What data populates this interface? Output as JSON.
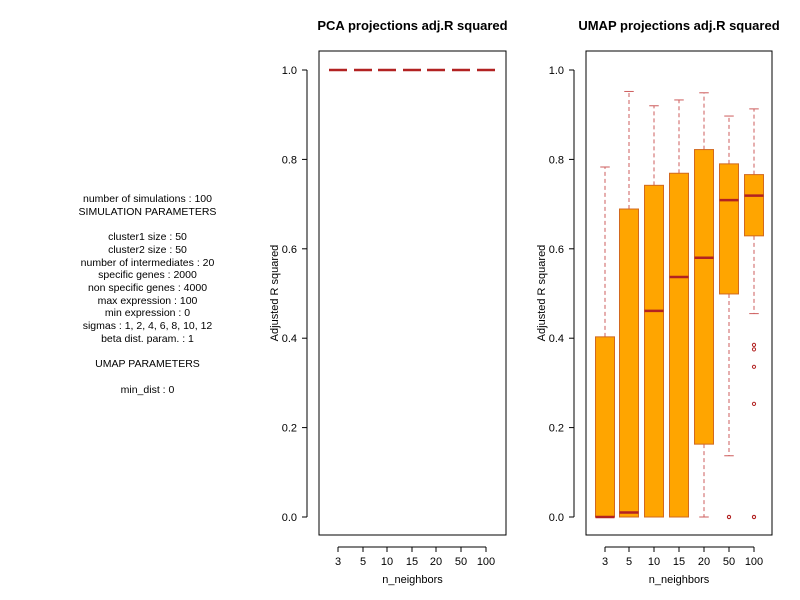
{
  "params": {
    "lines": [
      "number of simulations : 100",
      "SIMULATION PARAMETERS",
      "",
      "cluster1 size : 50",
      "cluster2 size : 50",
      "number of intermediates : 20",
      "specific genes : 2000",
      "non specific genes : 4000",
      "max expression : 100",
      "min expression : 0",
      "sigmas : 1, 2, 4, 6, 8, 10, 12",
      "beta dist. param. : 1",
      "",
      "UMAP PARAMETERS",
      "",
      "min_dist : 0"
    ]
  },
  "colors": {
    "box_fill": "#FFA500",
    "box_border": "#D2691E",
    "median": "#B22222",
    "whisker": "#CD5C5C",
    "outlier": "#B22222"
  },
  "chart_data": [
    {
      "type": "boxplot",
      "title": "PCA projections adj.R squared",
      "xlabel": "n_neighbors",
      "ylabel": "Adjusted R squared",
      "ylim": [
        0.0,
        1.0
      ],
      "yticks": [
        "0.0",
        "0.2",
        "0.4",
        "0.6",
        "0.8",
        "1.0"
      ],
      "categories": [
        "3",
        "5",
        "10",
        "15",
        "20",
        "50",
        "100"
      ],
      "boxes": [
        {
          "min": 1.0,
          "q1": 1.0,
          "median": 1.0,
          "q3": 1.0,
          "max": 1.0,
          "outliers": []
        },
        {
          "min": 1.0,
          "q1": 1.0,
          "median": 1.0,
          "q3": 1.0,
          "max": 1.0,
          "outliers": []
        },
        {
          "min": 1.0,
          "q1": 1.0,
          "median": 1.0,
          "q3": 1.0,
          "max": 1.0,
          "outliers": []
        },
        {
          "min": 1.0,
          "q1": 1.0,
          "median": 1.0,
          "q3": 1.0,
          "max": 1.0,
          "outliers": []
        },
        {
          "min": 1.0,
          "q1": 1.0,
          "median": 1.0,
          "q3": 1.0,
          "max": 1.0,
          "outliers": []
        },
        {
          "min": 1.0,
          "q1": 1.0,
          "median": 1.0,
          "q3": 1.0,
          "max": 1.0,
          "outliers": []
        },
        {
          "min": 1.0,
          "q1": 1.0,
          "median": 1.0,
          "q3": 1.0,
          "max": 1.0,
          "outliers": []
        }
      ]
    },
    {
      "type": "boxplot",
      "title": "UMAP projections adj.R squared",
      "xlabel": "n_neighbors",
      "ylabel": "Adjusted R squared",
      "ylim": [
        0.0,
        1.0
      ],
      "yticks": [
        "0.0",
        "0.2",
        "0.4",
        "0.6",
        "0.8",
        "1.0"
      ],
      "categories": [
        "3",
        "5",
        "10",
        "15",
        "20",
        "50",
        "100"
      ],
      "boxes": [
        {
          "min": 0.0,
          "q1": 0.0,
          "median": 0.0,
          "q3": 0.403,
          "max": 0.783,
          "outliers": []
        },
        {
          "min": 0.0,
          "q1": 0.0,
          "median": 0.01,
          "q3": 0.689,
          "max": 0.952,
          "outliers": []
        },
        {
          "min": 0.0,
          "q1": 0.0,
          "median": 0.461,
          "q3": 0.742,
          "max": 0.92,
          "outliers": []
        },
        {
          "min": 0.0,
          "q1": 0.0,
          "median": 0.537,
          "q3": 0.769,
          "max": 0.933,
          "outliers": []
        },
        {
          "min": 0.0,
          "q1": 0.163,
          "median": 0.58,
          "q3": 0.822,
          "max": 0.949,
          "outliers": []
        },
        {
          "min": 0.137,
          "q1": 0.499,
          "median": 0.709,
          "q3": 0.79,
          "max": 0.897,
          "outliers": [
            0.0,
            0.0
          ]
        },
        {
          "min": 0.455,
          "q1": 0.629,
          "median": 0.719,
          "q3": 0.766,
          "max": 0.913,
          "outliers": [
            0.385,
            0.375,
            0.336,
            0.253,
            0.0,
            0.0
          ]
        }
      ]
    }
  ]
}
